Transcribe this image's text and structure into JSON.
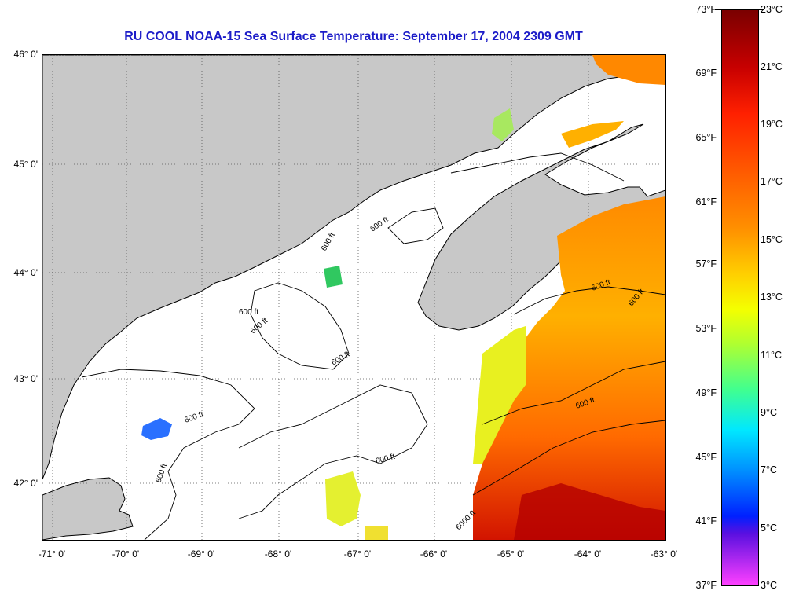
{
  "title": "RU COOL  NOAA-15  Sea Surface Temperature:  September 17, 2004 2309 GMT",
  "map": {
    "contour_label": "600 ft",
    "contour_label_deep": "6000 ft",
    "latitude_labels": [
      "46° 0'",
      "45° 0'",
      "44° 0'",
      "43° 0'",
      "42° 0'"
    ],
    "longitude_labels": [
      "-71° 0'",
      "-70° 0'",
      "-69° 0'",
      "-68° 0'",
      "-67° 0'",
      "-66° 0'",
      "-65° 0'",
      "-64° 0'",
      "-63° 0'"
    ],
    "colors": {
      "land": "#c8c8c8",
      "cloud_mask": "#ffffff",
      "coastline": "#000000"
    }
  },
  "colorbar": {
    "fahrenheit": [
      "73°F",
      "69°F",
      "65°F",
      "61°F",
      "57°F",
      "53°F",
      "49°F",
      "45°F",
      "41°F",
      "37°F"
    ],
    "celsius": [
      "23°C",
      "21°C",
      "19°C",
      "17°C",
      "15°C",
      "13°C",
      "11°C",
      "9°C",
      "7°C",
      "5°C",
      "3°C"
    ]
  }
}
